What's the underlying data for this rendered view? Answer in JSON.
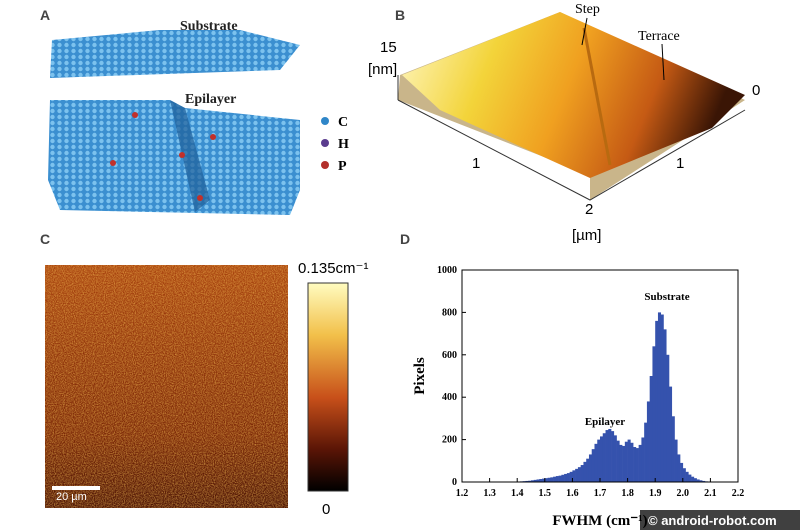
{
  "panels": {
    "a": {
      "label": "A",
      "substrate": "Substrate",
      "epilayer": "Epilayer",
      "legend": [
        {
          "label": "C",
          "color": "#2f86c8"
        },
        {
          "label": "H",
          "color": "#5a3c8e"
        },
        {
          "label": "P",
          "color": "#b3302b"
        }
      ]
    },
    "b": {
      "label": "B",
      "step": "Step",
      "terrace": "Terrace",
      "z_max": "15",
      "z_unit": "[nm]",
      "z_min": "0",
      "x_tick": "1",
      "y_tick": "1",
      "y_tick_end": "2",
      "xy_unit": "[µm]"
    },
    "c": {
      "label": "C",
      "colorbar_max": "0.135cm⁻¹",
      "colorbar_min": "0",
      "scale_bar": "20 µm"
    },
    "d": {
      "label": "D"
    }
  },
  "chart_data": {
    "type": "histogram",
    "color": "#3552ad",
    "xlabel": "FWHM (cm⁻¹)",
    "ylabel": "Pixels",
    "annotations": [
      "Substrate",
      "Epilayer"
    ],
    "bins": [
      1.4,
      1.41,
      1.42,
      1.43,
      1.44,
      1.45,
      1.46,
      1.47,
      1.48,
      1.49,
      1.5,
      1.51,
      1.52,
      1.53,
      1.54,
      1.55,
      1.56,
      1.57,
      1.58,
      1.59,
      1.6,
      1.61,
      1.62,
      1.63,
      1.64,
      1.65,
      1.66,
      1.67,
      1.68,
      1.69,
      1.7,
      1.71,
      1.72,
      1.73,
      1.74,
      1.75,
      1.76,
      1.77,
      1.78,
      1.79,
      1.8,
      1.81,
      1.82,
      1.83,
      1.84,
      1.85,
      1.86,
      1.87,
      1.88,
      1.89,
      1.9,
      1.91,
      1.92,
      1.93,
      1.94,
      1.95,
      1.96,
      1.97,
      1.98,
      1.99,
      2.0,
      2.01,
      2.02,
      2.03,
      2.04,
      2.05,
      2.06,
      2.07,
      2.08,
      2.09,
      2.1
    ],
    "values": [
      2,
      3,
      4,
      5,
      6,
      8,
      10,
      12,
      14,
      16,
      18,
      20,
      22,
      25,
      28,
      30,
      34,
      38,
      42,
      48,
      55,
      62,
      70,
      80,
      95,
      110,
      130,
      155,
      180,
      200,
      215,
      230,
      245,
      250,
      240,
      220,
      195,
      175,
      170,
      190,
      200,
      185,
      165,
      160,
      175,
      210,
      280,
      380,
      500,
      640,
      760,
      800,
      790,
      720,
      600,
      450,
      310,
      200,
      130,
      90,
      65,
      48,
      35,
      25,
      18,
      12,
      8,
      5,
      3,
      2
    ],
    "xlim": [
      1.2,
      2.2
    ],
    "ylim": [
      0,
      1000
    ],
    "xticks": [
      1.2,
      1.3,
      1.4,
      1.5,
      1.6,
      1.7,
      1.8,
      1.9,
      {
        "value": 2,
        "label": "2.0"
      },
      2.1,
      2.2
    ],
    "yticks": [
      0,
      200,
      400,
      600,
      800,
      1000
    ]
  },
  "watermark": "© android-robot.com"
}
